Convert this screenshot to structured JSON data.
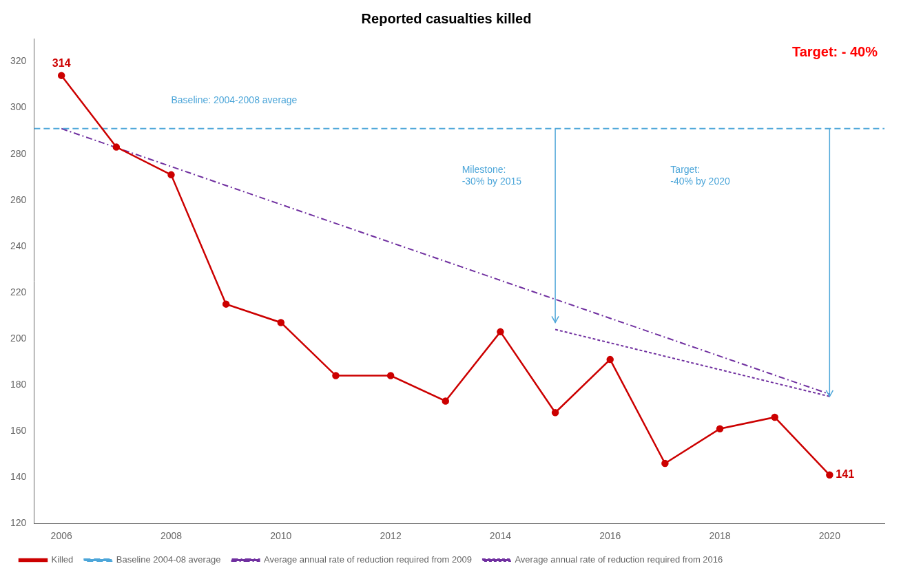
{
  "chart_data": {
    "type": "line",
    "title": "Reported casualties killed",
    "series": [
      {
        "name": "Baseline 2004-08 average",
        "color": "#4da6d9",
        "line_style": "dashed",
        "x": [
          2005.5,
          2021.0
        ],
        "values": [
          291,
          291
        ]
      },
      {
        "name": "Killed",
        "color": "#cc0000",
        "line_style": "solid",
        "marker": "circle",
        "x": [
          2006,
          2007,
          2008,
          2009,
          2010,
          2011,
          2012,
          2013,
          2014,
          2015,
          2016,
          2017,
          2018,
          2019,
          2020
        ],
        "values": [
          314,
          283,
          271,
          215,
          207,
          184,
          184,
          173,
          203,
          168,
          191,
          146,
          161,
          166,
          141
        ]
      },
      {
        "name": "Average annual rate of reduction required from 2009",
        "color": "#7030a0",
        "line_style": "dashdot",
        "x": [
          2006,
          2020
        ],
        "values": [
          291,
          176
        ]
      },
      {
        "name": "Average annual rate of reduction required from 2016",
        "color": "#7030a0",
        "line_style": "dotted",
        "x": [
          2015,
          2020
        ],
        "values": [
          204,
          175
        ]
      }
    ],
    "annotations": [
      {
        "text": "314",
        "x": 2006,
        "y": 314,
        "color": "#cc0000"
      },
      {
        "text": "141",
        "x": 2020,
        "y": 141,
        "color": "#cc0000"
      },
      {
        "text": "Baseline: 2004-2008 average",
        "x": 2008.0,
        "y": 300,
        "color": "#4da6d9"
      },
      {
        "text": "Milestone:\n-30% by 2015",
        "x": 2013.3,
        "y": 275,
        "color": "#4da6d9"
      },
      {
        "text": "Target:\n-40% by 2020",
        "x": 2017.1,
        "y": 275,
        "color": "#4da6d9"
      },
      {
        "text": "Target: - 40%",
        "color": "red"
      }
    ],
    "arrows": [
      {
        "x": 2015,
        "y_start": 291,
        "y_end": 207,
        "color": "#4da6d9"
      },
      {
        "x": 2020,
        "y_start": 291,
        "y_end": 175,
        "color": "#4da6d9"
      }
    ],
    "xlim": [
      2005.5,
      2021.0
    ],
    "ylim": [
      120,
      330
    ],
    "xticks": [
      2006,
      2008,
      2010,
      2012,
      2014,
      2016,
      2018,
      2020
    ],
    "yticks": [
      120,
      140,
      160,
      180,
      200,
      220,
      240,
      260,
      280,
      300,
      320
    ],
    "grid": false,
    "legend": "lower left"
  }
}
